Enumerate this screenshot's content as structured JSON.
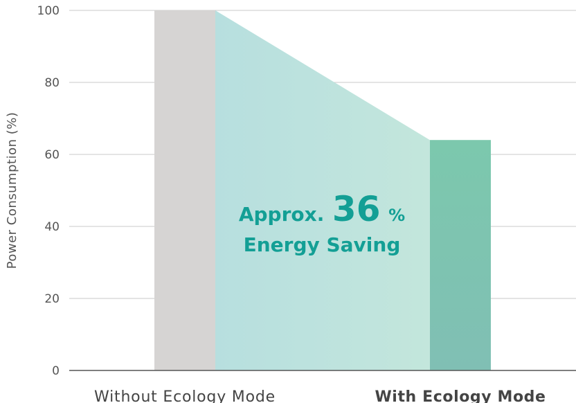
{
  "chart_data": {
    "type": "bar",
    "categories": [
      "Without Ecology Mode",
      "With Ecology Mode"
    ],
    "category_emphasis": [
      false,
      true
    ],
    "values": [
      100,
      64
    ],
    "ylabel": "Power Consumption (%)",
    "ylim": [
      0,
      100
    ],
    "yticks": [
      0,
      20,
      40,
      60,
      80,
      100
    ],
    "grid": true,
    "annotation": {
      "prefix": "Approx.",
      "value": "36",
      "unit": "%",
      "line2": "Energy Saving"
    },
    "colors": {
      "bar_without": "#d6d4d3",
      "bar_with_top": "#7cc8ad",
      "bar_with_bottom": "#80bfb4",
      "band_left": "#b7dfdf",
      "band_right": "#c3e6dc",
      "annotation": "#139f95",
      "grid": "#c8c8c8",
      "axis": "#555555"
    }
  }
}
